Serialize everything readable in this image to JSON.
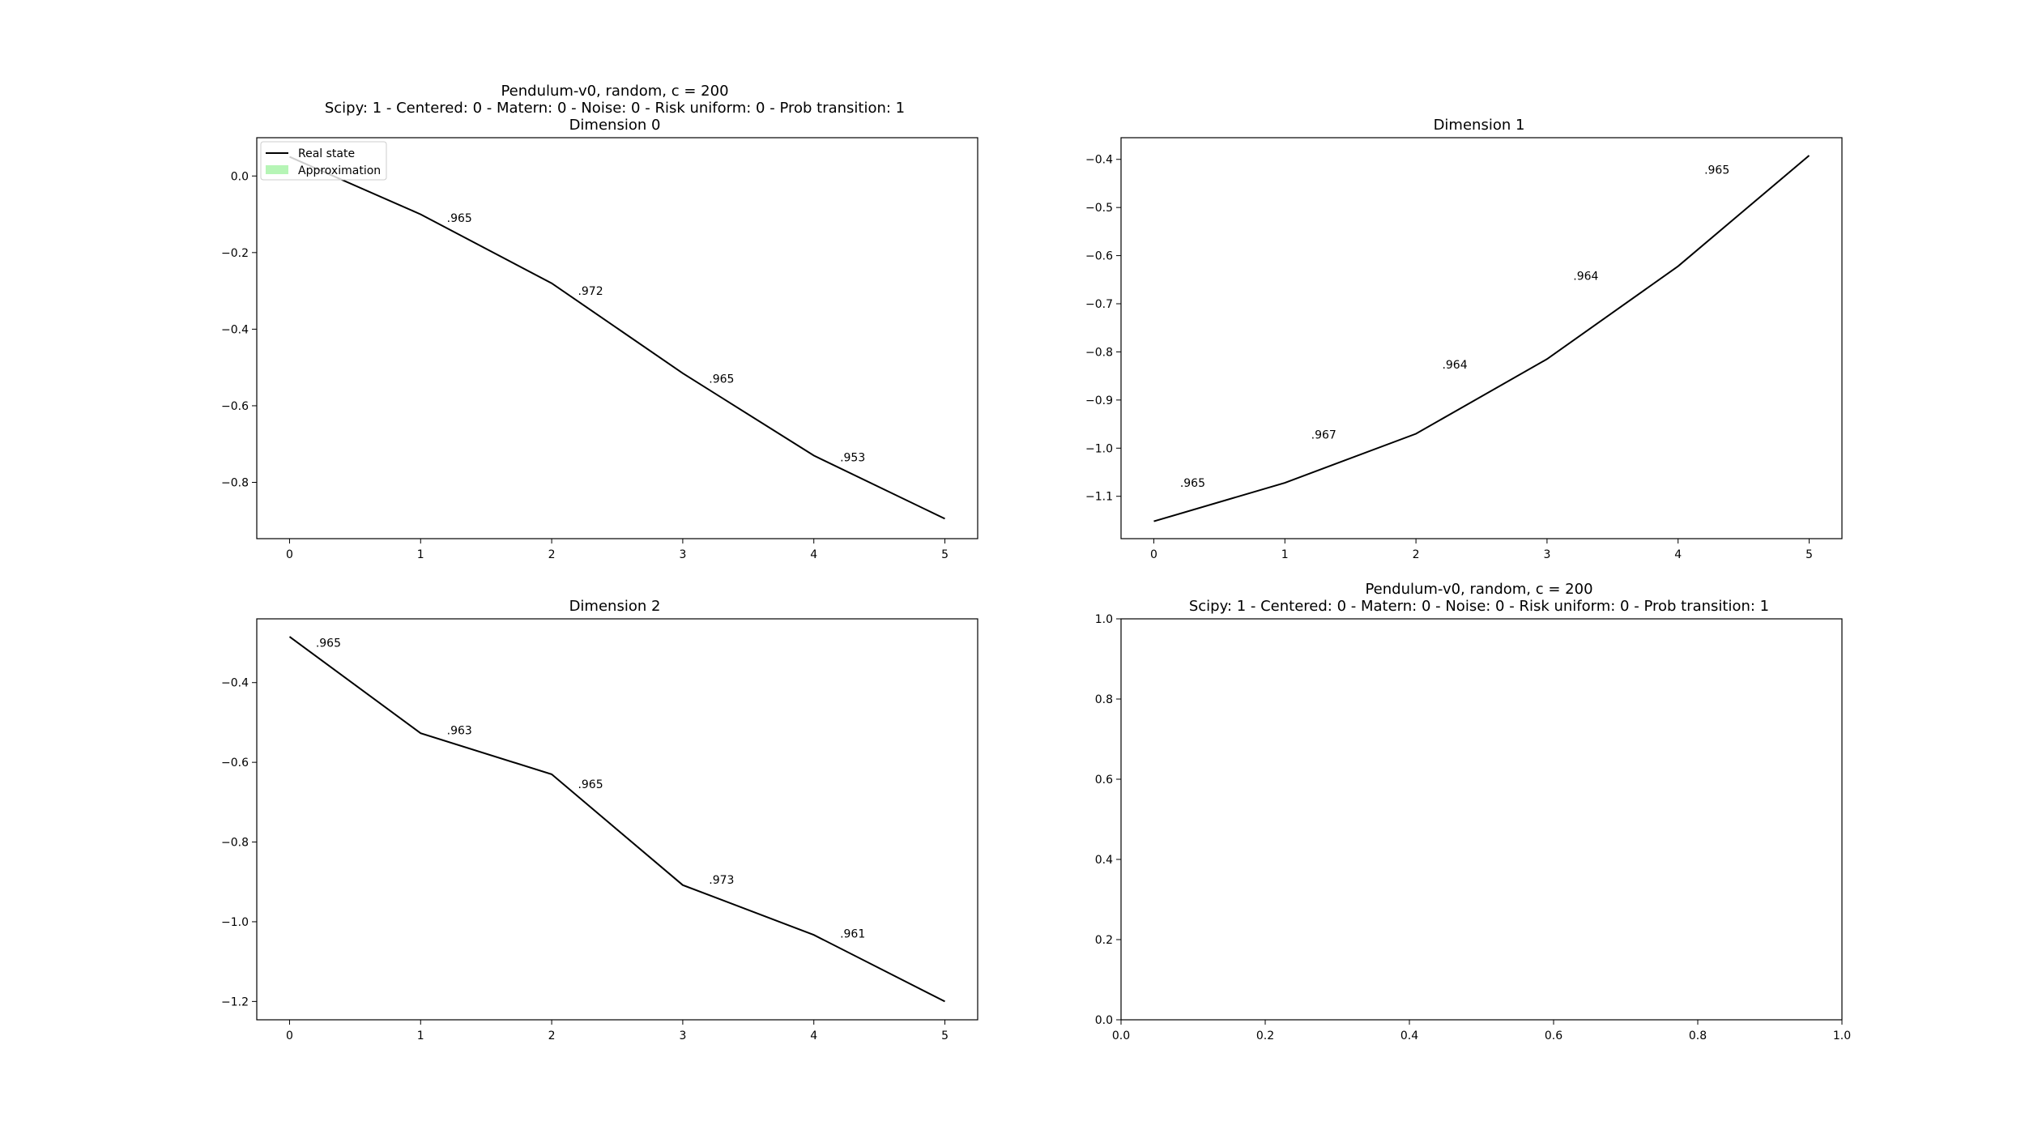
{
  "figure": {
    "suptitle": "Pendulum-v0, random, c = 200",
    "subtitle": "Scipy: 1 - Centered: 0 - Matern: 0 - Noise: 0 - Risk uniform: 0 - Prob transition: 1"
  },
  "legend": {
    "real_label": "Real state",
    "approx_label": "Approximation",
    "real_color": "#000000",
    "approx_color": "#b6f5b6"
  },
  "chart_data": [
    {
      "type": "line",
      "title": "Dimension 0",
      "x": [
        0,
        1,
        2,
        3,
        4,
        5
      ],
      "series": [
        {
          "name": "Real state",
          "values": [
            0.05,
            -0.1,
            -0.28,
            -0.515,
            -0.73,
            -0.895
          ]
        }
      ],
      "annotations": [
        {
          "x": 1.2,
          "y": -0.12,
          "text": ".965"
        },
        {
          "x": 2.2,
          "y": -0.31,
          "text": ".972"
        },
        {
          "x": 3.2,
          "y": -0.54,
          "text": ".965"
        },
        {
          "x": 4.2,
          "y": -0.745,
          "text": ".953"
        }
      ],
      "xticks": [
        "0",
        "1",
        "2",
        "3",
        "4",
        "5"
      ],
      "yticks": [
        "0.0",
        "−0.2",
        "−0.4",
        "−0.6",
        "−0.8"
      ],
      "ytick_values": [
        0.0,
        -0.2,
        -0.4,
        -0.6,
        -0.8
      ],
      "xlim": [
        -0.25,
        5.25
      ],
      "ylim": [
        -0.947,
        0.1
      ],
      "legend": "upper-left"
    },
    {
      "type": "line",
      "title": "Dimension 1",
      "x": [
        0,
        1,
        2,
        3,
        4,
        5
      ],
      "series": [
        {
          "name": "Real state",
          "values": [
            -1.152,
            -1.072,
            -0.97,
            -0.815,
            -0.622,
            -0.392
          ]
        }
      ],
      "annotations": [
        {
          "x": 0.2,
          "y": -1.08,
          "text": ".965"
        },
        {
          "x": 1.2,
          "y": -0.98,
          "text": ".967"
        },
        {
          "x": 2.2,
          "y": -0.835,
          "text": ".964"
        },
        {
          "x": 3.2,
          "y": -0.65,
          "text": ".964"
        },
        {
          "x": 4.2,
          "y": -0.43,
          "text": ".965"
        }
      ],
      "xticks": [
        "0",
        "1",
        "2",
        "3",
        "4",
        "5"
      ],
      "yticks": [
        "−0.4",
        "−0.5",
        "−0.6",
        "−0.7",
        "−0.8",
        "−0.9",
        "−1.0",
        "−1.1"
      ],
      "ytick_values": [
        -0.4,
        -0.5,
        -0.6,
        -0.7,
        -0.8,
        -0.9,
        -1.0,
        -1.1
      ],
      "xlim": [
        -0.25,
        5.25
      ],
      "ylim": [
        -1.188,
        -0.355
      ]
    },
    {
      "type": "line",
      "title": "Dimension 2",
      "x": [
        0,
        1,
        2,
        3,
        4,
        5
      ],
      "series": [
        {
          "name": "Real state",
          "values": [
            -0.285,
            -0.527,
            -0.63,
            -0.908,
            -1.033,
            -1.2
          ]
        }
      ],
      "annotations": [
        {
          "x": 0.2,
          "y": -0.31,
          "text": ".965"
        },
        {
          "x": 1.2,
          "y": -0.53,
          "text": ".963"
        },
        {
          "x": 2.2,
          "y": -0.665,
          "text": ".965"
        },
        {
          "x": 3.2,
          "y": -0.905,
          "text": ".973"
        },
        {
          "x": 4.2,
          "y": -1.04,
          "text": ".961"
        }
      ],
      "xticks": [
        "0",
        "1",
        "2",
        "3",
        "4",
        "5"
      ],
      "yticks": [
        "−0.4",
        "−0.6",
        "−0.8",
        "−1.0",
        "−1.2"
      ],
      "ytick_values": [
        -0.4,
        -0.6,
        -0.8,
        -1.0,
        -1.2
      ],
      "xlim": [
        -0.25,
        5.25
      ],
      "ylim": [
        -1.246,
        -0.24
      ]
    },
    {
      "type": "line",
      "title": "",
      "x": [],
      "series": [],
      "annotations": [],
      "xticks": [
        "0.0",
        "0.2",
        "0.4",
        "0.6",
        "0.8",
        "1.0"
      ],
      "xtick_values": [
        0.0,
        0.2,
        0.4,
        0.6,
        0.8,
        1.0
      ],
      "yticks": [
        "0.0",
        "0.2",
        "0.4",
        "0.6",
        "0.8",
        "1.0"
      ],
      "ytick_values": [
        0.0,
        0.2,
        0.4,
        0.6,
        0.8,
        1.0
      ],
      "xlim": [
        0.0,
        1.0
      ],
      "ylim": [
        0.0,
        1.0
      ]
    }
  ]
}
